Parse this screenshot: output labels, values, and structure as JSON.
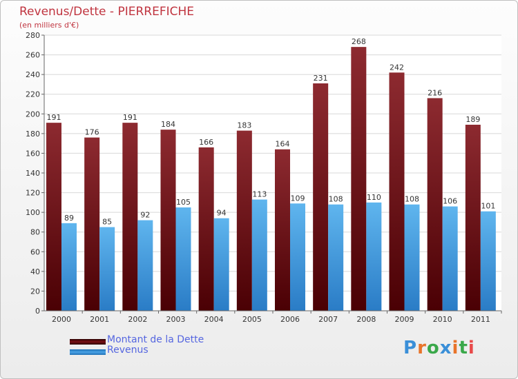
{
  "chart_data": {
    "type": "bar",
    "title": "Revenus/Dette - PIERREFICHE",
    "subtitle": "(en milliers d'€)",
    "categories": [
      "2000",
      "2001",
      "2002",
      "2003",
      "2004",
      "2005",
      "2006",
      "2007",
      "2008",
      "2009",
      "2010",
      "2011"
    ],
    "series": [
      {
        "name": "Montant de la Dette",
        "color": "#7a1015",
        "values": [
          191,
          176,
          191,
          184,
          166,
          183,
          164,
          231,
          268,
          242,
          216,
          189
        ]
      },
      {
        "name": "Revenus",
        "color": "#4aa3e6",
        "values": [
          89,
          85,
          92,
          105,
          94,
          113,
          109,
          108,
          110,
          108,
          106,
          101
        ]
      }
    ],
    "ylim": [
      0,
      280
    ],
    "yticks": [
      0,
      20,
      40,
      60,
      80,
      100,
      120,
      140,
      160,
      180,
      200,
      220,
      240,
      260,
      280
    ],
    "grid": true,
    "legend": "bottom-left"
  },
  "logo": {
    "letters": [
      "P",
      "r",
      "o",
      "x",
      "i",
      "t",
      "i"
    ],
    "colors": [
      "#3a8fd8",
      "#e8742a",
      "#3aa84a",
      "#3a8fd8",
      "#e8742a",
      "#3aa84a",
      "#e84a4a"
    ]
  }
}
